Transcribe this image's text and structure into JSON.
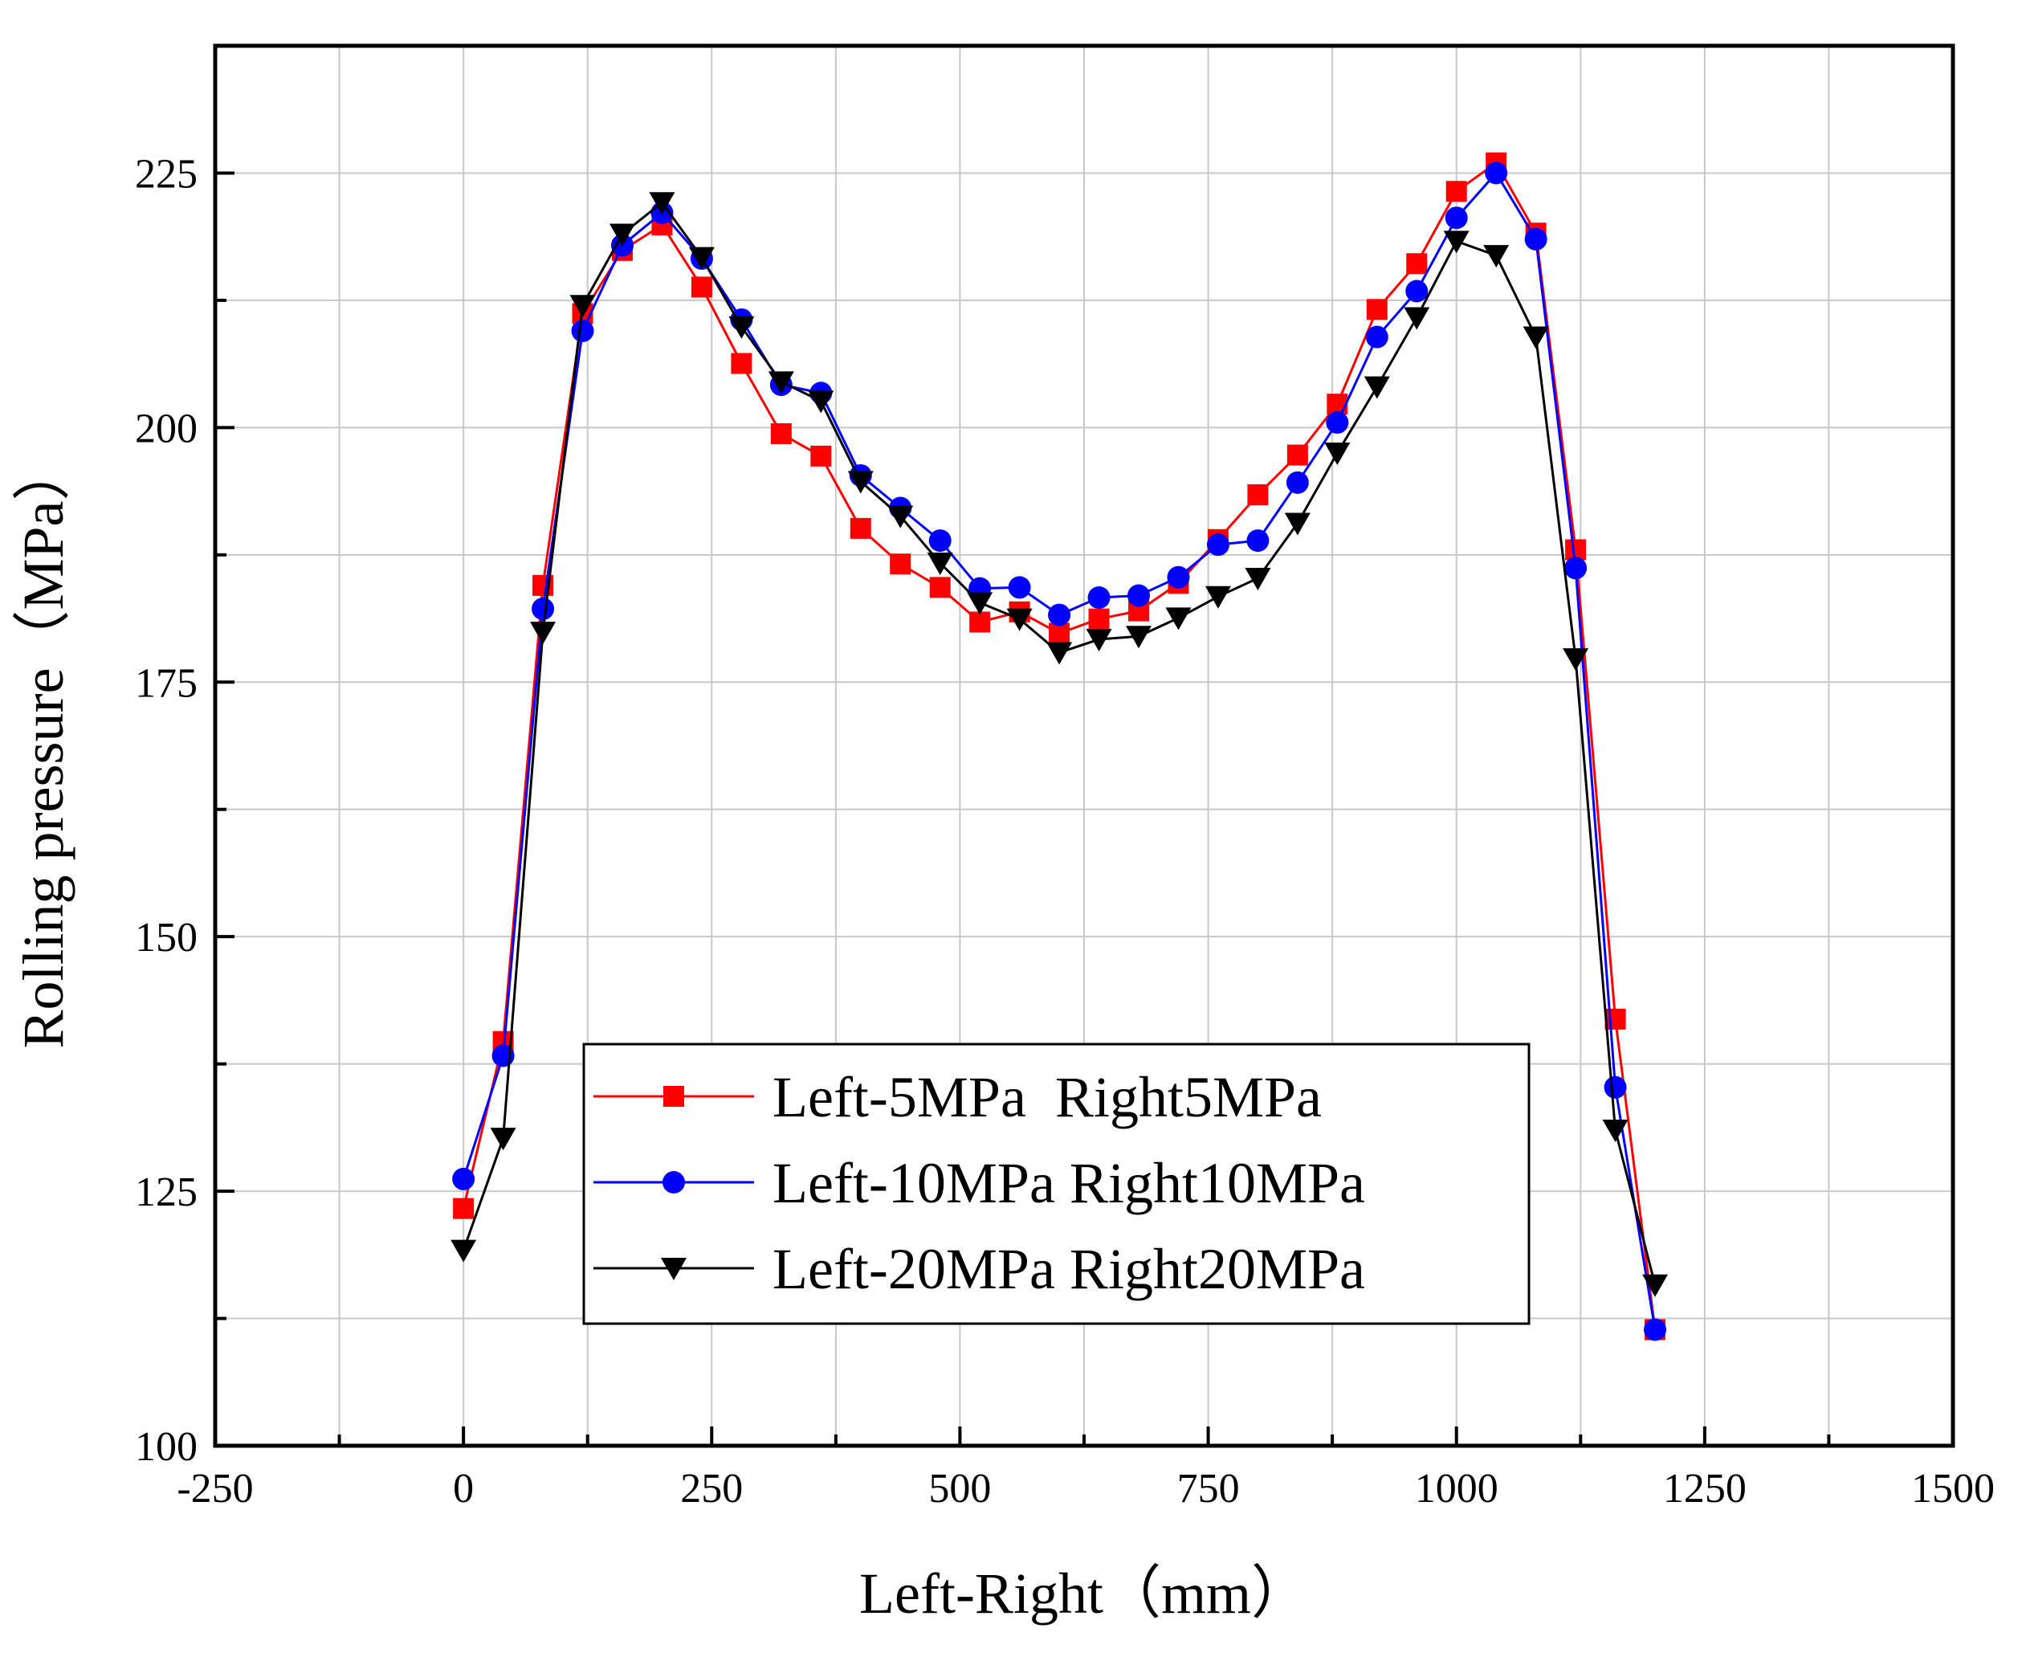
{
  "chart_data": {
    "type": "line",
    "title": "",
    "xlabel": "Left-Right（mm）",
    "ylabel": "Rolling pressure（MPa）",
    "xlim": [
      -250,
      1500
    ],
    "ylim": [
      100,
      237.5
    ],
    "x_ticks": [
      -250,
      0,
      250,
      500,
      750,
      1000,
      1250,
      1500
    ],
    "x_tick_labels": [
      "-250",
      "0",
      "250",
      "500",
      "750",
      "1000",
      "1250",
      "1500"
    ],
    "y_ticks": [
      100,
      125,
      150,
      175,
      200,
      225
    ],
    "y_tick_labels": [
      "100",
      "125",
      "150",
      "175",
      "200",
      "225"
    ],
    "grid": true,
    "legend_position": "bottom-center",
    "x": [
      0,
      40,
      80,
      120,
      160,
      200,
      240,
      280,
      320,
      360,
      400,
      440,
      480,
      520,
      560,
      600,
      640,
      680,
      720,
      760,
      800,
      840,
      880,
      920,
      960,
      1000,
      1040,
      1080,
      1120,
      1160,
      1200
    ],
    "series": [
      {
        "name": "Left-5MPa  Right5MPa",
        "color": "#ff0000",
        "marker": "square",
        "values": [
          123.3,
          139.7,
          184.5,
          211.2,
          217.4,
          219.9,
          213.8,
          206.3,
          199.4,
          197.2,
          190.1,
          186.6,
          184.3,
          180.9,
          181.9,
          179.8,
          181.2,
          182.0,
          184.7,
          189.0,
          193.4,
          197.3,
          202.3,
          211.6,
          216.1,
          223.2,
          226.0,
          219.1,
          188.0,
          141.9,
          111.4
        ]
      },
      {
        "name": "Left-10MPa Right10MPa",
        "color": "#0000ff",
        "marker": "circle",
        "values": [
          126.2,
          138.3,
          182.2,
          209.5,
          217.9,
          221.1,
          216.6,
          210.6,
          204.2,
          203.4,
          195.3,
          192.1,
          188.9,
          184.2,
          184.3,
          181.6,
          183.3,
          183.5,
          185.3,
          188.5,
          188.9,
          194.6,
          200.5,
          208.9,
          213.4,
          220.6,
          225.0,
          218.5,
          186.2,
          135.2,
          111.4
        ]
      },
      {
        "name": "Left-20MPa Right20MPa",
        "color": "#000000",
        "marker": "triangle-down",
        "values": [
          119.2,
          130.2,
          179.9,
          212.0,
          219.0,
          222.1,
          216.7,
          209.9,
          204.5,
          202.6,
          194.7,
          191.3,
          186.7,
          182.8,
          181.2,
          177.9,
          179.2,
          179.5,
          181.3,
          183.4,
          185.2,
          190.6,
          197.5,
          204.0,
          210.8,
          218.3,
          216.9,
          208.9,
          177.3,
          131.0,
          115.8
        ]
      }
    ]
  }
}
